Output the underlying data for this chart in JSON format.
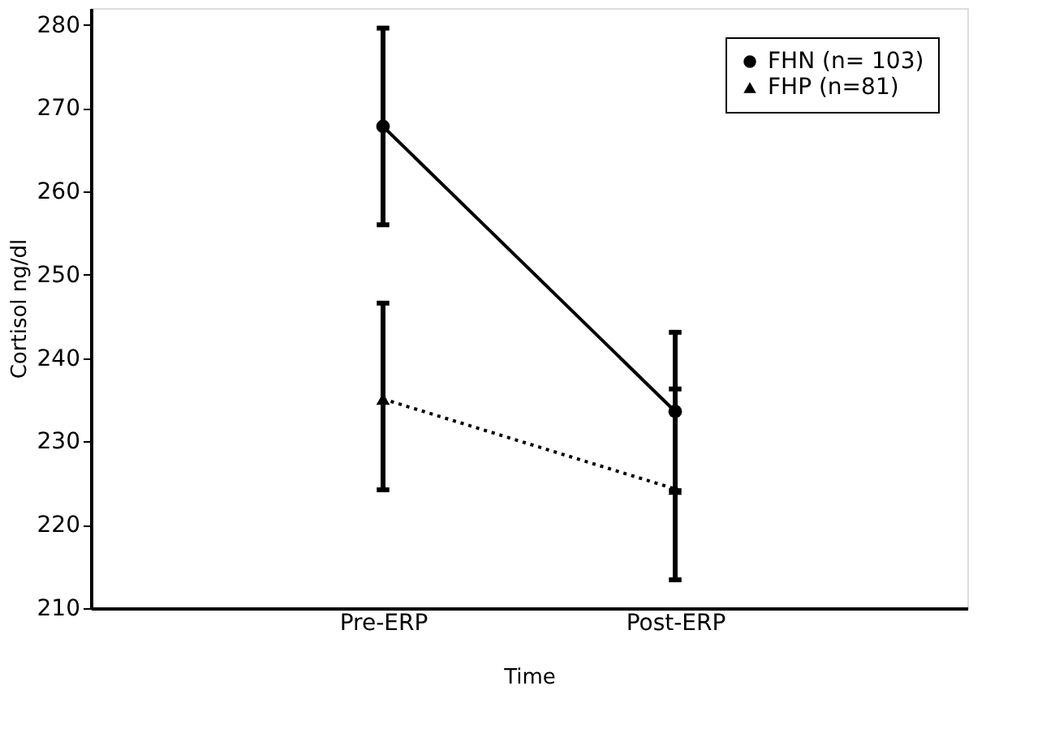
{
  "chart_data": {
    "type": "line",
    "xlabel": "Time",
    "ylabel": "Cortisol ng/dl",
    "categories": [
      "Pre-ERP",
      "Post-ERP"
    ],
    "series": [
      {
        "name": "FHN (n= 103)",
        "color": "#000000",
        "marker": "circle",
        "line_style": "solid",
        "values": [
          267.8,
          233.6
        ],
        "errors": [
          [
            256,
            279.6
          ],
          [
            224.1,
            243.1
          ]
        ]
      },
      {
        "name": "FHP (n=81)",
        "color": "#000000",
        "marker": "triangle",
        "line_style": "dotted",
        "values": [
          235.1,
          224.3
        ],
        "errors": [
          [
            224.2,
            246.6
          ],
          [
            213.4,
            236.3
          ]
        ]
      }
    ],
    "ylim": [
      210,
      282
    ],
    "yticks": [
      210,
      220,
      230,
      240,
      250,
      260,
      270,
      280
    ],
    "grid": false,
    "legend": "top right"
  }
}
